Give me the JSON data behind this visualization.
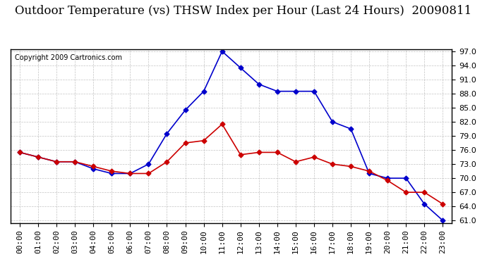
{
  "title": "Outdoor Temperature (vs) THSW Index per Hour (Last 24 Hours)  20090811",
  "copyright": "Copyright 2009 Cartronics.com",
  "hours": [
    "00:00",
    "01:00",
    "02:00",
    "03:00",
    "04:00",
    "05:00",
    "06:00",
    "07:00",
    "08:00",
    "09:00",
    "10:00",
    "11:00",
    "12:00",
    "13:00",
    "14:00",
    "15:00",
    "16:00",
    "17:00",
    "18:00",
    "19:00",
    "20:00",
    "21:00",
    "22:00",
    "23:00"
  ],
  "temp": [
    75.5,
    74.5,
    73.5,
    73.5,
    72.5,
    71.5,
    71.0,
    71.0,
    73.5,
    77.5,
    78.0,
    81.5,
    75.0,
    75.5,
    75.5,
    73.5,
    74.5,
    73.0,
    72.5,
    71.5,
    69.5,
    67.0,
    67.0,
    64.5
  ],
  "thsw": [
    75.5,
    74.5,
    73.5,
    73.5,
    72.0,
    71.0,
    71.0,
    73.0,
    79.5,
    84.5,
    88.5,
    97.0,
    93.5,
    90.0,
    88.5,
    88.5,
    88.5,
    82.0,
    80.5,
    71.0,
    70.0,
    70.0,
    64.5,
    61.0
  ],
  "temp_color": "#cc0000",
  "thsw_color": "#0000cc",
  "ylim_min": 61.0,
  "ylim_max": 97.0,
  "yticks": [
    61.0,
    64.0,
    67.0,
    70.0,
    73.0,
    76.0,
    79.0,
    82.0,
    85.0,
    88.0,
    91.0,
    94.0,
    97.0
  ],
  "bg_color": "#ffffff",
  "grid_color": "#aaaaaa",
  "marker": "D",
  "marker_size": 3.5,
  "title_fontsize": 12,
  "copyright_fontsize": 7,
  "tick_fontsize": 8
}
